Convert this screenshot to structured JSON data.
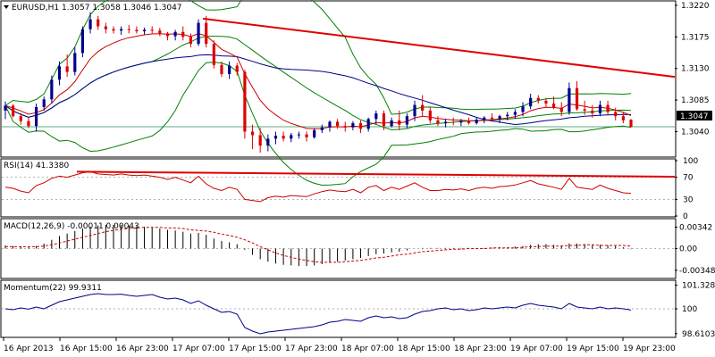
{
  "chart_data": [
    {
      "type": "candlestick",
      "title": "EURUSD,H1 1.3057 1.3058 1.3046 1.3047",
      "x_ticks": [
        "16 Apr 2013",
        "16 Apr 15:00",
        "16 Apr 23:00",
        "17 Apr 07:00",
        "17 Apr 15:00",
        "17 Apr 23:00",
        "18 Apr 07:00",
        "18 Apr 15:00",
        "18 Apr 23:00",
        "19 Apr 07:00",
        "19 Apr 15:00",
        "19 Apr 23:00"
      ],
      "y_ticks": [
        "1.3220",
        "1.3175",
        "1.3130",
        "1.3085",
        "1.3040"
      ],
      "ylim": [
        1.3005,
        1.3225
      ],
      "current_price": "1.3047",
      "candles": [
        [
          1.307,
          1.3083,
          1.3058,
          1.3077
        ],
        [
          1.3077,
          1.3079,
          1.306,
          1.3062
        ],
        [
          1.3062,
          1.3066,
          1.305,
          1.3055
        ],
        [
          1.3055,
          1.306,
          1.3045,
          1.3048
        ],
        [
          1.3048,
          1.308,
          1.304,
          1.3075
        ],
        [
          1.3075,
          1.309,
          1.307,
          1.3086
        ],
        [
          1.3086,
          1.312,
          1.308,
          1.3114
        ],
        [
          1.3114,
          1.314,
          1.3106,
          1.3133
        ],
        [
          1.3133,
          1.315,
          1.3118,
          1.3125
        ],
        [
          1.3125,
          1.316,
          1.312,
          1.3152
        ],
        [
          1.3152,
          1.319,
          1.3146,
          1.3186
        ],
        [
          1.3186,
          1.321,
          1.318,
          1.32
        ],
        [
          1.32,
          1.3205,
          1.3185,
          1.319
        ],
        [
          1.319,
          1.3195,
          1.318,
          1.3186
        ],
        [
          1.3186,
          1.319,
          1.318,
          1.3184
        ],
        [
          1.3184,
          1.319,
          1.3178,
          1.3186
        ],
        [
          1.3186,
          1.3192,
          1.318,
          1.3185
        ],
        [
          1.3185,
          1.319,
          1.318,
          1.3183
        ],
        [
          1.3183,
          1.3188,
          1.3178,
          1.3185
        ],
        [
          1.3185,
          1.319,
          1.318,
          1.3184
        ],
        [
          1.3184,
          1.3188,
          1.3176,
          1.318
        ],
        [
          1.318,
          1.3182,
          1.317,
          1.3176
        ],
        [
          1.3176,
          1.3185,
          1.317,
          1.3182
        ],
        [
          1.3182,
          1.319,
          1.317,
          1.3175
        ],
        [
          1.3175,
          1.318,
          1.316,
          1.3165
        ],
        [
          1.3165,
          1.32,
          1.3162,
          1.3195
        ],
        [
          1.3195,
          1.3205,
          1.316,
          1.3165
        ],
        [
          1.3165,
          1.317,
          1.313,
          1.3135
        ],
        [
          1.3135,
          1.314,
          1.3118,
          1.3122
        ],
        [
          1.3122,
          1.314,
          1.3115,
          1.3134
        ],
        [
          1.3134,
          1.3138,
          1.312,
          1.3125
        ],
        [
          1.3125,
          1.3128,
          1.303,
          1.304
        ],
        [
          1.304,
          1.305,
          1.3015,
          1.3035
        ],
        [
          1.3035,
          1.3045,
          1.301,
          1.302
        ],
        [
          1.302,
          1.3036,
          1.3012,
          1.303
        ],
        [
          1.303,
          1.304,
          1.3022,
          1.3034
        ],
        [
          1.3034,
          1.304,
          1.3026,
          1.303
        ],
        [
          1.303,
          1.3038,
          1.3025,
          1.3035
        ],
        [
          1.3035,
          1.304,
          1.303,
          1.3036
        ],
        [
          1.3036,
          1.304,
          1.3026,
          1.3032
        ],
        [
          1.3032,
          1.3045,
          1.303,
          1.3042
        ],
        [
          1.3042,
          1.305,
          1.3038,
          1.3046
        ],
        [
          1.3046,
          1.3056,
          1.304,
          1.3054
        ],
        [
          1.3054,
          1.3058,
          1.3044,
          1.3048
        ],
        [
          1.3048,
          1.3054,
          1.304,
          1.3046
        ],
        [
          1.3046,
          1.3055,
          1.3042,
          1.3052
        ],
        [
          1.3052,
          1.3056,
          1.3038,
          1.3044
        ],
        [
          1.3044,
          1.306,
          1.304,
          1.3058
        ],
        [
          1.3058,
          1.307,
          1.305,
          1.3066
        ],
        [
          1.3066,
          1.307,
          1.3042,
          1.3048
        ],
        [
          1.3048,
          1.306,
          1.3046,
          1.3056
        ],
        [
          1.3056,
          1.307,
          1.3042,
          1.305
        ],
        [
          1.305,
          1.3066,
          1.3045,
          1.3062
        ],
        [
          1.3062,
          1.3084,
          1.3055,
          1.3078
        ],
        [
          1.3078,
          1.3092,
          1.3062,
          1.307
        ],
        [
          1.307,
          1.3075,
          1.3052,
          1.3056
        ],
        [
          1.3056,
          1.3062,
          1.3048,
          1.3052
        ],
        [
          1.3052,
          1.3058,
          1.3046,
          1.3054
        ],
        [
          1.3054,
          1.306,
          1.3049,
          1.3053
        ],
        [
          1.3053,
          1.3058,
          1.3048,
          1.3055
        ],
        [
          1.3055,
          1.306,
          1.305,
          1.3052
        ],
        [
          1.3052,
          1.306,
          1.305,
          1.3057
        ],
        [
          1.3057,
          1.3062,
          1.3052,
          1.306
        ],
        [
          1.306,
          1.3066,
          1.3054,
          1.3058
        ],
        [
          1.3058,
          1.3064,
          1.3052,
          1.3062
        ],
        [
          1.3062,
          1.3068,
          1.3056,
          1.3064
        ],
        [
          1.3064,
          1.3072,
          1.3058,
          1.3068
        ],
        [
          1.3068,
          1.3082,
          1.3062,
          1.3076
        ],
        [
          1.3076,
          1.3094,
          1.3072,
          1.3088
        ],
        [
          1.3088,
          1.3092,
          1.308,
          1.3084
        ],
        [
          1.3084,
          1.3088,
          1.3075,
          1.308
        ],
        [
          1.308,
          1.309,
          1.3072,
          1.3074
        ],
        [
          1.3074,
          1.3082,
          1.3062,
          1.3068
        ],
        [
          1.3068,
          1.311,
          1.3064,
          1.3102
        ],
        [
          1.3102,
          1.3112,
          1.307,
          1.3072
        ],
        [
          1.3072,
          1.3084,
          1.3064,
          1.307
        ],
        [
          1.307,
          1.3078,
          1.306,
          1.3066
        ],
        [
          1.3066,
          1.3084,
          1.3062,
          1.3078
        ],
        [
          1.3078,
          1.3084,
          1.3064,
          1.3068
        ],
        [
          1.3068,
          1.3074,
          1.3056,
          1.3062
        ],
        [
          1.3062,
          1.3068,
          1.3052,
          1.3056
        ],
        [
          1.3057,
          1.3058,
          1.3046,
          1.3047
        ]
      ],
      "indicators": [
        "Bollinger upper",
        "Bollinger middle",
        "Bollinger lower",
        "moving average"
      ],
      "trendline": [
        [
          1.3201,
          1.3118
        ]
      ]
    },
    {
      "type": "line",
      "title": "RSI(14) 41.3380",
      "y_ticks": [
        "100",
        "70",
        "30",
        "0"
      ],
      "ylim": [
        0,
        100
      ],
      "levels": [
        70,
        30
      ],
      "values": [
        52,
        50,
        45,
        42,
        55,
        60,
        68,
        72,
        70,
        74,
        78,
        80,
        76,
        75,
        74,
        76,
        74,
        73,
        74,
        72,
        70,
        66,
        70,
        65,
        60,
        72,
        58,
        50,
        46,
        52,
        48,
        30,
        28,
        26,
        33,
        36,
        34,
        37,
        36,
        35,
        40,
        44,
        47,
        45,
        44,
        48,
        42,
        52,
        55,
        46,
        52,
        48,
        54,
        60,
        52,
        46,
        46,
        48,
        47,
        49,
        46,
        50,
        52,
        50,
        53,
        54,
        56,
        60,
        64,
        58,
        55,
        52,
        48,
        68,
        52,
        50,
        48,
        56,
        50,
        46,
        42,
        41
      ]
    },
    {
      "type": "line",
      "title": "MACD(12,26,9) -0.00011 0.00043",
      "y_ticks": [
        "0.00342",
        "0.00",
        "-0.00348"
      ],
      "ylim": [
        -0.0045,
        0.0045
      ],
      "macd": [
        0.0005,
        0.0004,
        0.0003,
        0.0002,
        0.0004,
        0.0008,
        0.0014,
        0.002,
        0.0024,
        0.0028,
        0.0032,
        0.0035,
        0.0037,
        0.0038,
        0.0038,
        0.0038,
        0.0037,
        0.0036,
        0.0035,
        0.0034,
        0.0032,
        0.003,
        0.0029,
        0.0027,
        0.0024,
        0.0025,
        0.0022,
        0.0016,
        0.0012,
        0.001,
        0.0007,
        -0.0002,
        -0.001,
        -0.0017,
        -0.0021,
        -0.0024,
        -0.0026,
        -0.0027,
        -0.0028,
        -0.0028,
        -0.0027,
        -0.0025,
        -0.0023,
        -0.0021,
        -0.0019,
        -0.0017,
        -0.0015,
        -0.0012,
        -0.0009,
        -0.0008,
        -0.0006,
        -0.0005,
        -0.0003,
        0.0,
        0.0001,
        0.0001,
        0.0001,
        0.0001,
        0.0001,
        0.0001,
        0.0001,
        0.0001,
        0.0001,
        0.0001,
        0.0002,
        0.0002,
        0.0003,
        0.0004,
        0.0006,
        0.0007,
        0.0007,
        0.0006,
        0.0005,
        0.0008,
        0.0008,
        0.0007,
        0.0006,
        0.0006,
        0.0005,
        0.0004,
        0.0002,
        -0.0001
      ],
      "signal": [
        0.0003,
        0.0003,
        0.0003,
        0.0003,
        0.0003,
        0.0004,
        0.0006,
        0.0009,
        0.0012,
        0.0015,
        0.0018,
        0.0021,
        0.0024,
        0.0027,
        0.0029,
        0.0031,
        0.0032,
        0.0033,
        0.0034,
        0.0034,
        0.0034,
        0.0033,
        0.0033,
        0.0032,
        0.003,
        0.0029,
        0.0028,
        0.0026,
        0.0023,
        0.0021,
        0.0018,
        0.0014,
        0.0009,
        0.0003,
        -0.0002,
        -0.0007,
        -0.0011,
        -0.0014,
        -0.0017,
        -0.0019,
        -0.0021,
        -0.0022,
        -0.0022,
        -0.0022,
        -0.0021,
        -0.002,
        -0.0019,
        -0.0017,
        -0.0015,
        -0.0014,
        -0.0012,
        -0.001,
        -0.0009,
        -0.0007,
        -0.0005,
        -0.0004,
        -0.0003,
        -0.0002,
        -0.0001,
        -0.0001,
        0.0,
        0.0,
        0.0,
        0.0001,
        0.0001,
        0.0001,
        0.0001,
        0.0002,
        0.0003,
        0.0003,
        0.0004,
        0.0004,
        0.0004,
        0.0005,
        0.0005,
        0.0006,
        0.0006,
        0.0005,
        0.0005,
        0.0005,
        0.0005,
        0.0004
      ]
    },
    {
      "type": "line",
      "title": "Momentum(22) 99.9311",
      "y_ticks": [
        "101.3283",
        "100",
        "98.6103"
      ],
      "ylim": [
        98.45,
        101.5
      ],
      "levels": [
        100
      ],
      "values": [
        100.0,
        99.95,
        100.05,
        99.98,
        100.1,
        100.0,
        100.2,
        100.4,
        100.5,
        100.6,
        100.7,
        100.8,
        100.85,
        100.8,
        100.8,
        100.82,
        100.75,
        100.7,
        100.75,
        100.8,
        100.65,
        100.55,
        100.6,
        100.5,
        100.3,
        100.45,
        100.2,
        100.0,
        99.8,
        99.85,
        99.7,
        98.95,
        98.75,
        98.6,
        98.7,
        98.75,
        98.8,
        98.85,
        98.9,
        98.95,
        99.0,
        99.1,
        99.25,
        99.3,
        99.4,
        99.35,
        99.3,
        99.5,
        99.6,
        99.5,
        99.55,
        99.45,
        99.5,
        99.7,
        99.85,
        99.9,
        100.0,
        100.05,
        99.95,
        100.0,
        99.9,
        99.95,
        100.05,
        100.0,
        100.05,
        100.1,
        100.05,
        100.2,
        100.3,
        100.2,
        100.15,
        100.1,
        100.0,
        100.3,
        100.1,
        100.05,
        100.0,
        100.1,
        100.0,
        100.05,
        100.0,
        99.93
      ]
    }
  ]
}
